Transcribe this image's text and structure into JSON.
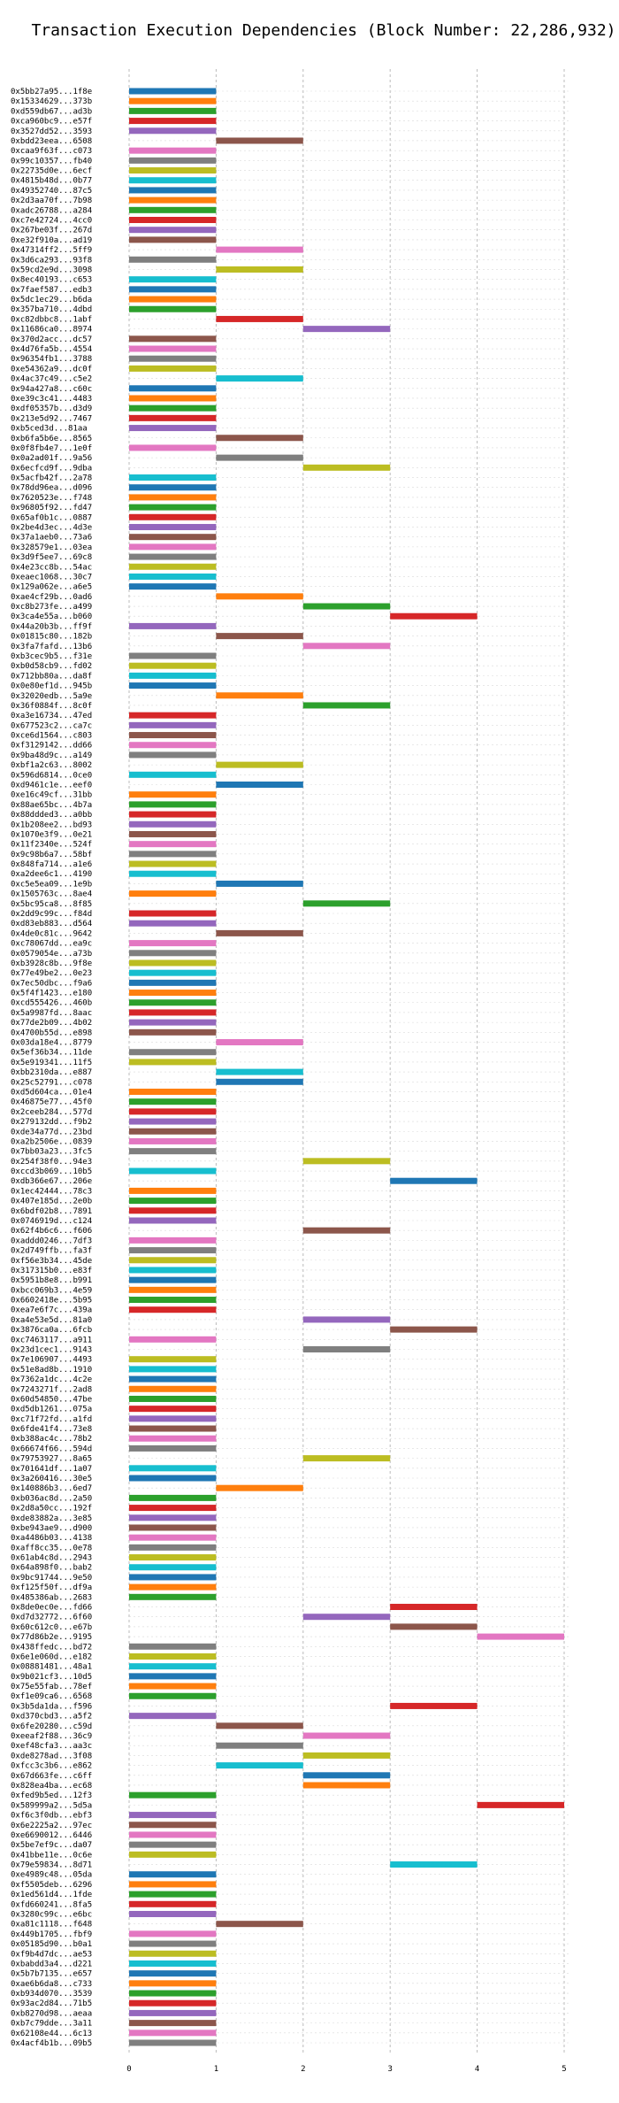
{
  "chart_data": {
    "type": "gantt",
    "title": "Transaction Execution Dependencies (Block Number: 22,286,932)",
    "xlim": [
      0,
      5
    ],
    "xticks": [
      0,
      1,
      2,
      3,
      4,
      5
    ],
    "grid": true,
    "colors": [
      "#1f77b4",
      "#ff7f0e",
      "#2ca02c",
      "#d62728",
      "#9467bd",
      "#8c564b",
      "#e377c2",
      "#7f7f7f",
      "#bcbd22",
      "#17becf"
    ],
    "transactions": [
      {
        "label": "0x5bb27a95...1f8e",
        "start": 0
      },
      {
        "label": "0x15334629...373b",
        "start": 0
      },
      {
        "label": "0xd559db67...ad3b",
        "start": 0
      },
      {
        "label": "0xca960bc9...e57f",
        "start": 0
      },
      {
        "label": "0x3527dd52...3593",
        "start": 0
      },
      {
        "label": "0xbdd23eea...6508",
        "start": 1
      },
      {
        "label": "0xcaa9f63f...c073",
        "start": 0
      },
      {
        "label": "0x99c10357...fb40",
        "start": 0
      },
      {
        "label": "0x22735d0e...6ecf",
        "start": 0
      },
      {
        "label": "0x4815b48d...0b77",
        "start": 0
      },
      {
        "label": "0x49352740...87c5",
        "start": 0
      },
      {
        "label": "0x2d3aa70f...7b98",
        "start": 0
      },
      {
        "label": "0xadc26788...a284",
        "start": 0
      },
      {
        "label": "0xc7e42724...4cc0",
        "start": 0
      },
      {
        "label": "0x267be03f...267d",
        "start": 0
      },
      {
        "label": "0xe32f910a...ad19",
        "start": 0
      },
      {
        "label": "0x47314ff2...5ff9",
        "start": 1
      },
      {
        "label": "0x3d6ca293...93f8",
        "start": 0
      },
      {
        "label": "0x59cd2e9d...3098",
        "start": 1
      },
      {
        "label": "0x8ec40193...c653",
        "start": 0
      },
      {
        "label": "0x7faef587...edb3",
        "start": 0
      },
      {
        "label": "0x5dc1ec29...b6da",
        "start": 0
      },
      {
        "label": "0x357ba710...4dbd",
        "start": 0
      },
      {
        "label": "0xc82dbbc8...1abf",
        "start": 1
      },
      {
        "label": "0x11686ca0...8974",
        "start": 2
      },
      {
        "label": "0x370d2acc...dc57",
        "start": 0
      },
      {
        "label": "0x4d76fa5b...4554",
        "start": 0
      },
      {
        "label": "0x96354fb1...3788",
        "start": 0
      },
      {
        "label": "0xe54362a9...dc0f",
        "start": 0
      },
      {
        "label": "0x4ac37c49...c5e2",
        "start": 1
      },
      {
        "label": "0x94a427a8...c60c",
        "start": 0
      },
      {
        "label": "0xe39c3c41...4483",
        "start": 0
      },
      {
        "label": "0xdf05357b...d3d9",
        "start": 0
      },
      {
        "label": "0x213e5d92...7467",
        "start": 0
      },
      {
        "label": "0xb5ced3d...81aa",
        "start": 0
      },
      {
        "label": "0xb6fa5b6e...8565",
        "start": 1
      },
      {
        "label": "0x0f8fb4e7...1e0f",
        "start": 0
      },
      {
        "label": "0x0a2ad01f...9a56",
        "start": 1
      },
      {
        "label": "0x6ecfcd9f...9dba",
        "start": 2
      },
      {
        "label": "0x5acfb42f...2a78",
        "start": 0
      },
      {
        "label": "0x78dd96ea...d096",
        "start": 0
      },
      {
        "label": "0x7620523e...f748",
        "start": 0
      },
      {
        "label": "0x96805f92...fd47",
        "start": 0
      },
      {
        "label": "0x65af0b1c...0887",
        "start": 0
      },
      {
        "label": "0x2be4d3ec...4d3e",
        "start": 0
      },
      {
        "label": "0x37a1aeb0...73a6",
        "start": 0
      },
      {
        "label": "0x328579e1...03ea",
        "start": 0
      },
      {
        "label": "0x3d9f5ee7...69c8",
        "start": 0
      },
      {
        "label": "0x4e23cc8b...54ac",
        "start": 0
      },
      {
        "label": "0xeaec1068...30c7",
        "start": 0
      },
      {
        "label": "0x129a062e...a6e5",
        "start": 0
      },
      {
        "label": "0xae4cf29b...0ad6",
        "start": 1
      },
      {
        "label": "0xc8b273fe...a499",
        "start": 2
      },
      {
        "label": "0x3ca4e55a...b060",
        "start": 3
      },
      {
        "label": "0x44a20b3b...ff9f",
        "start": 0
      },
      {
        "label": "0x01815c80...182b",
        "start": 1
      },
      {
        "label": "0x3fa7fafd...13b6",
        "start": 2
      },
      {
        "label": "0xb3cec9b5...f31e",
        "start": 0
      },
      {
        "label": "0xb0d58cb9...fd02",
        "start": 0
      },
      {
        "label": "0x712bb80a...da8f",
        "start": 0
      },
      {
        "label": "0x0e80ef1d...945b",
        "start": 0
      },
      {
        "label": "0x32020edb...5a9e",
        "start": 1
      },
      {
        "label": "0x36f0884f...8c0f",
        "start": 2
      },
      {
        "label": "0xa3e16734...47ed",
        "start": 0
      },
      {
        "label": "0x677523c2...ca7c",
        "start": 0
      },
      {
        "label": "0xce6d1564...c803",
        "start": 0
      },
      {
        "label": "0xf3129142...dd66",
        "start": 0
      },
      {
        "label": "0x9ba48d9c...a149",
        "start": 0
      },
      {
        "label": "0xbf1a2c63...8002",
        "start": 1
      },
      {
        "label": "0x596d6814...0ce0",
        "start": 0
      },
      {
        "label": "0xd9461c1e...eef0",
        "start": 1
      },
      {
        "label": "0xe16c49cf...31bb",
        "start": 0
      },
      {
        "label": "0x88ae65bc...4b7a",
        "start": 0
      },
      {
        "label": "0x88ddded3...a0bb",
        "start": 0
      },
      {
        "label": "0x1b208ee2...bd93",
        "start": 0
      },
      {
        "label": "0x1070e3f9...0e21",
        "start": 0
      },
      {
        "label": "0x11f2340e...524f",
        "start": 0
      },
      {
        "label": "0x9c98b6a7...58bf",
        "start": 0
      },
      {
        "label": "0x848fa714...a1e6",
        "start": 0
      },
      {
        "label": "0xa2dee6c1...4190",
        "start": 0
      },
      {
        "label": "0xc5e5ea09...1e9b",
        "start": 1
      },
      {
        "label": "0x1505763c...8ae4",
        "start": 0
      },
      {
        "label": "0x5bc95ca8...8f85",
        "start": 2
      },
      {
        "label": "0x2dd9c99c...f84d",
        "start": 0
      },
      {
        "label": "0xd83eb883...d564",
        "start": 0
      },
      {
        "label": "0x4de0c81c...9642",
        "start": 1
      },
      {
        "label": "0xc78067dd...ea9c",
        "start": 0
      },
      {
        "label": "0x0579054e...a73b",
        "start": 0
      },
      {
        "label": "0xb3928c8b...9f8e",
        "start": 0
      },
      {
        "label": "0x77e49be2...0e23",
        "start": 0
      },
      {
        "label": "0x7ec50dbc...f9a6",
        "start": 0
      },
      {
        "label": "0x5f4f1423...e180",
        "start": 0
      },
      {
        "label": "0xcd555426...460b",
        "start": 0
      },
      {
        "label": "0x5a9987fd...8aac",
        "start": 0
      },
      {
        "label": "0x77de2b09...4b02",
        "start": 0
      },
      {
        "label": "0x4700b55d...e898",
        "start": 0
      },
      {
        "label": "0x03da18e4...8779",
        "start": 1
      },
      {
        "label": "0x5ef36b34...11de",
        "start": 0
      },
      {
        "label": "0x5e919341...11f5",
        "start": 0
      },
      {
        "label": "0xbb2310da...e887",
        "start": 1
      },
      {
        "label": "0x25c52791...c078",
        "start": 1
      },
      {
        "label": "0xd5d604ca...01e4",
        "start": 0
      },
      {
        "label": "0x46875e77...45f0",
        "start": 0
      },
      {
        "label": "0x2ceeb284...577d",
        "start": 0
      },
      {
        "label": "0x279132dd...f9b2",
        "start": 0
      },
      {
        "label": "0xde34a77d...23bd",
        "start": 0
      },
      {
        "label": "0xa2b2506e...0839",
        "start": 0
      },
      {
        "label": "0x7bb03a23...3fc5",
        "start": 0
      },
      {
        "label": "0x254f38f0...94e3",
        "start": 2
      },
      {
        "label": "0xccd3b069...10b5",
        "start": 0
      },
      {
        "label": "0xdb366e67...206e",
        "start": 3
      },
      {
        "label": "0x1ec42444...78c3",
        "start": 0
      },
      {
        "label": "0x407e185d...2e0b",
        "start": 0
      },
      {
        "label": "0x6bdf02b8...7891",
        "start": 0
      },
      {
        "label": "0x0746919d...c124",
        "start": 0
      },
      {
        "label": "0x62f4b6c6...f606",
        "start": 2
      },
      {
        "label": "0xaddd0246...7df3",
        "start": 0
      },
      {
        "label": "0x2d749ffb...fa3f",
        "start": 0
      },
      {
        "label": "0xf56e3b34...45de",
        "start": 0
      },
      {
        "label": "0x317315b0...e83f",
        "start": 0
      },
      {
        "label": "0x5951b8e8...b991",
        "start": 0
      },
      {
        "label": "0xbcc069b3...4e59",
        "start": 0
      },
      {
        "label": "0x6602418e...5b95",
        "start": 0
      },
      {
        "label": "0xea7e6f7c...439a",
        "start": 0
      },
      {
        "label": "0xa4e53e5d...81a0",
        "start": 2
      },
      {
        "label": "0x3876ca0a...6fcb",
        "start": 3
      },
      {
        "label": "0xc7463117...a911",
        "start": 0
      },
      {
        "label": "0x23d1cec1...9143",
        "start": 2
      },
      {
        "label": "0x7e106907...4493",
        "start": 0
      },
      {
        "label": "0x51e8ad8b...1910",
        "start": 0
      },
      {
        "label": "0x7362a1dc...4c2e",
        "start": 0
      },
      {
        "label": "0x7243271f...2ad8",
        "start": 0
      },
      {
        "label": "0x60d54850...47be",
        "start": 0
      },
      {
        "label": "0xd5db1261...075a",
        "start": 0
      },
      {
        "label": "0xc71f72fd...a1fd",
        "start": 0
      },
      {
        "label": "0x6fde41f4...73e8",
        "start": 0
      },
      {
        "label": "0xb388ac4c...78b2",
        "start": 0
      },
      {
        "label": "0x66674f66...594d",
        "start": 0
      },
      {
        "label": "0x79753927...8a65",
        "start": 2
      },
      {
        "label": "0x701641df...1a07",
        "start": 0
      },
      {
        "label": "0x3a260416...30e5",
        "start": 0
      },
      {
        "label": "0x140886b3...6ed7",
        "start": 1
      },
      {
        "label": "0xb036ac8d...2a50",
        "start": 0
      },
      {
        "label": "0x2d8a50cc...192f",
        "start": 0
      },
      {
        "label": "0xde83882a...3e85",
        "start": 0
      },
      {
        "label": "0xbe943ae9...d900",
        "start": 0
      },
      {
        "label": "0xa4486b03...4138",
        "start": 0
      },
      {
        "label": "0xaff8cc35...0e78",
        "start": 0
      },
      {
        "label": "0x61ab4c8d...2943",
        "start": 0
      },
      {
        "label": "0x64a898f0...bab2",
        "start": 0
      },
      {
        "label": "0x9bc91744...9e50",
        "start": 0
      },
      {
        "label": "0xf125f50f...df9a",
        "start": 0
      },
      {
        "label": "0x485386ab...2683",
        "start": 0
      },
      {
        "label": "0x8de0ec0e...fd66",
        "start": 3
      },
      {
        "label": "0xd7d32772...6f60",
        "start": 2
      },
      {
        "label": "0x60c612c0...e67b",
        "start": 3
      },
      {
        "label": "0x77d86b2e...9195",
        "start": 4
      },
      {
        "label": "0x438ffedc...bd72",
        "start": 0
      },
      {
        "label": "0x6e1e060d...e182",
        "start": 0
      },
      {
        "label": "0x08881481...48a1",
        "start": 0
      },
      {
        "label": "0x9b021cf3...10d5",
        "start": 0
      },
      {
        "label": "0x75e55fab...78ef",
        "start": 0
      },
      {
        "label": "0xf1e09ca6...6568",
        "start": 0
      },
      {
        "label": "0x3b5da1da...f596",
        "start": 3
      },
      {
        "label": "0xd370cbd3...a5f2",
        "start": 0
      },
      {
        "label": "0x6fe20280...c59d",
        "start": 1
      },
      {
        "label": "0xeeaf2f88...36c9",
        "start": 2
      },
      {
        "label": "0xef48cfa3...aa3c",
        "start": 1
      },
      {
        "label": "0xde8278ad...3f08",
        "start": 2
      },
      {
        "label": "0xfcc3c3b6...e862",
        "start": 1
      },
      {
        "label": "0x67d663fe...c6ff",
        "start": 2
      },
      {
        "label": "0x828ea4ba...ec68",
        "start": 2
      },
      {
        "label": "0xfed9b5ed...12f3",
        "start": 0
      },
      {
        "label": "0x589999a2...5d5a",
        "start": 4
      },
      {
        "label": "0xf6c3f0db...ebf3",
        "start": 0
      },
      {
        "label": "0x6e2225a2...97ec",
        "start": 0
      },
      {
        "label": "0xe6690012...6446",
        "start": 0
      },
      {
        "label": "0x5be7ef9c...da07",
        "start": 0
      },
      {
        "label": "0x41bbe11e...0c6e",
        "start": 0
      },
      {
        "label": "0x79e59834...8d71",
        "start": 3
      },
      {
        "label": "0xe4989c48...05da",
        "start": 0
      },
      {
        "label": "0xf5505deb...6296",
        "start": 0
      },
      {
        "label": "0x1ed561d4...1fde",
        "start": 0
      },
      {
        "label": "0xfd660241...8fa5",
        "start": 0
      },
      {
        "label": "0x3280c99c...e6bc",
        "start": 0
      },
      {
        "label": "0xa81c1118...f648",
        "start": 1
      },
      {
        "label": "0x449b1705...fbf9",
        "start": 0
      },
      {
        "label": "0x05185d90...b0a1",
        "start": 0
      },
      {
        "label": "0xf9b4d7dc...ae53",
        "start": 0
      },
      {
        "label": "0xbabdd3a4...d221",
        "start": 0
      },
      {
        "label": "0x5b7b7135...e657",
        "start": 0
      },
      {
        "label": "0xae6b6da8...c733",
        "start": 0
      },
      {
        "label": "0xb934d070...3539",
        "start": 0
      },
      {
        "label": "0x93ac2d84...71b5",
        "start": 0
      },
      {
        "label": "0xb8270d98...aeaa",
        "start": 0
      },
      {
        "label": "0xb7c79dde...3a11",
        "start": 0
      },
      {
        "label": "0x62108e44...6c13",
        "start": 0
      },
      {
        "label": "0x4acf4b1b...09b5",
        "start": 0
      }
    ]
  }
}
